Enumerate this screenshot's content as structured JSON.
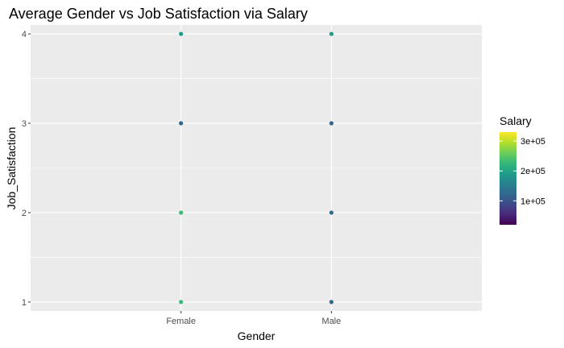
{
  "chart_data": {
    "type": "scatter",
    "title": "Average Gender vs Job Satisfaction via Salary",
    "xlabel": "Gender",
    "ylabel": "Job_Satisfaction",
    "categories": [
      "Female",
      "Male"
    ],
    "ylim": [
      0.9,
      4.1
    ],
    "y_ticks": [
      1,
      2,
      3,
      4
    ],
    "y_tick_labels": [
      "1",
      "2",
      "3",
      "4"
    ],
    "grid": true,
    "points": [
      {
        "x": "Female",
        "y": 4,
        "salary": 190000
      },
      {
        "x": "Female",
        "y": 3,
        "salary": 120000
      },
      {
        "x": "Female",
        "y": 2,
        "salary": 230000
      },
      {
        "x": "Female",
        "y": 1,
        "salary": 230000
      },
      {
        "x": "Male",
        "y": 4,
        "salary": 190000
      },
      {
        "x": "Male",
        "y": 3,
        "salary": 120000
      },
      {
        "x": "Male",
        "y": 2,
        "salary": 130000
      },
      {
        "x": "Male",
        "y": 1,
        "salary": 130000
      }
    ],
    "legend": {
      "title": "Salary",
      "placement": "right",
      "colorscale": "viridis",
      "min": 20000,
      "max": 330000,
      "breaks": [
        100000,
        200000,
        300000
      ],
      "break_labels": [
        "1e+05",
        "2e+05",
        "3e+05"
      ]
    }
  },
  "colors": {
    "panel_background": "#ebebeb",
    "grid": "#ffffff"
  }
}
